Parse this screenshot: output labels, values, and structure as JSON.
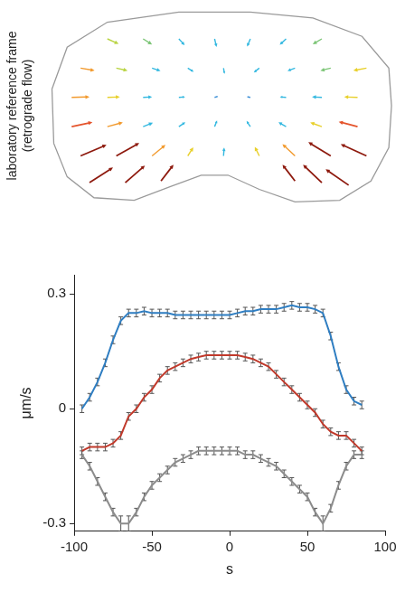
{
  "chart_data": [
    {
      "type": "vector_field",
      "ylabel": "laboratory reference frame (retrograde flow)",
      "tick_labels": false,
      "xlim": [
        0,
        395
      ],
      "ylim": [
        0,
        240
      ],
      "outline": {
        "x": [
          8,
          25,
          70,
          150,
          230,
          300,
          355,
          385,
          388,
          385,
          365,
          330,
          280,
          240,
          205,
          175,
          140,
          100,
          55,
          25,
          10
        ],
        "y": [
          140,
          190,
          220,
          232,
          232,
          225,
          203,
          165,
          120,
          70,
          30,
          7,
          5,
          20,
          37,
          37,
          23,
          7,
          10,
          35,
          75
        ]
      },
      "vectors": {
        "x": [
          70,
          110,
          150,
          190,
          230,
          270,
          310,
          40,
          80,
          120,
          160,
          200,
          240,
          280,
          320,
          360,
          30,
          70,
          110,
          150,
          190,
          230,
          270,
          310,
          350,
          30,
          70,
          110,
          150,
          190,
          230,
          270,
          310,
          350,
          40,
          80,
          120,
          160,
          200,
          240,
          280,
          320,
          360,
          50,
          90,
          130,
          280,
          310,
          340
        ],
        "y": [
          200,
          200,
          200,
          200,
          200,
          200,
          200,
          165,
          165,
          165,
          165,
          165,
          165,
          165,
          165,
          165,
          130,
          130,
          130,
          130,
          130,
          130,
          130,
          130,
          130,
          95,
          95,
          95,
          95,
          95,
          95,
          95,
          95,
          95,
          60,
          60,
          60,
          60,
          60,
          60,
          60,
          60,
          60,
          28,
          28,
          30,
          30,
          28,
          25
        ],
        "u": [
          12.6,
          10,
          6.5,
          2.2,
          -3.6,
          -7.1,
          -10.2,
          15.7,
          12.6,
          9.4,
          6.6,
          1.1,
          -6.1,
          -8.4,
          -11.6,
          -14.7,
          20,
          14,
          10,
          7,
          4,
          -4,
          -7,
          -11,
          -15,
          23.3,
          17.3,
          11,
          7.3,
          2.8,
          -4.2,
          -8.5,
          -13,
          -21.1,
          29,
          25.7,
          15,
          6.2,
          0.7,
          -5,
          -14.1,
          -25.1,
          -28.8,
          26.3,
          22,
          14,
          -14,
          -21,
          -25.7
        ],
        "v": [
          -6,
          -6.8,
          -7.6,
          -9.7,
          -9.3,
          -7.1,
          -6.4,
          -2.9,
          -3,
          -3.3,
          -4.4,
          -6.9,
          -5.2,
          -3.3,
          -3,
          -2.9,
          0.6,
          0.5,
          0.5,
          0.6,
          1.3,
          0.8,
          0.5,
          0.5,
          0.5,
          5.3,
          5,
          4.7,
          5.3,
          7.5,
          6.8,
          5.2,
          5,
          5.9,
          13.2,
          15.4,
          13.2,
          10.3,
          10,
          10.9,
          14.1,
          16.4,
          14,
          18.1,
          20.5,
          19.5,
          19.5,
          21.4,
          19
        ],
        "colors": [
          "#b9d443",
          "#7cc576",
          "#33b8e0",
          "#33b8e0",
          "#33b8e0",
          "#33b8e0",
          "#7cc576",
          "#f29a2e",
          "#b9d443",
          "#33b8e0",
          "#33b8e0",
          "#33b8e0",
          "#33b8e0",
          "#33b8e0",
          "#7cc576",
          "#e8d02c",
          "#f29a2e",
          "#e8d02c",
          "#33b8e0",
          "#33b8e0",
          "#3b8fd6",
          "#3b8fd6",
          "#33b8e0",
          "#33b8e0",
          "#e8d02c",
          "#e4532b",
          "#f29a2e",
          "#33b8e0",
          "#33b8e0",
          "#33b8e0",
          "#33b8e0",
          "#33b8e0",
          "#e8d02c",
          "#e4532b",
          "#8e1a0e",
          "#8e1a0e",
          "#f29a2e",
          "#e8d02c",
          "#33b8e0",
          "#e8d02c",
          "#f29a2e",
          "#8e1a0e",
          "#8e1a0e",
          "#8e1a0e",
          "#8e1a0e",
          "#8e1a0e",
          "#8e1a0e",
          "#8e1a0e",
          "#8e1a0e"
        ]
      }
    },
    {
      "type": "line",
      "xlabel": "s",
      "ylabel": "μm/s",
      "x": [
        -95,
        -90,
        -85,
        -80,
        -75,
        -70,
        -65,
        -60,
        -55,
        -50,
        -45,
        -40,
        -35,
        -30,
        -25,
        -20,
        -15,
        -10,
        -5,
        0,
        5,
        10,
        15,
        20,
        25,
        30,
        35,
        40,
        45,
        50,
        55,
        60,
        65,
        70,
        75,
        80,
        85
      ],
      "xlim": [
        -100,
        100
      ],
      "xticks": [
        -100,
        -50,
        0,
        50,
        100
      ],
      "ylim": [
        -0.32,
        0.35
      ],
      "yticks": [
        -0.3,
        0,
        0.3
      ],
      "grid": false,
      "series": [
        {
          "color": "#2f7ec2",
          "values": [
            0.0,
            0.03,
            0.07,
            0.12,
            0.18,
            0.23,
            0.25,
            0.25,
            0.255,
            0.25,
            0.25,
            0.25,
            0.245,
            0.245,
            0.245,
            0.245,
            0.245,
            0.245,
            0.245,
            0.245,
            0.25,
            0.255,
            0.255,
            0.26,
            0.26,
            0.26,
            0.265,
            0.27,
            0.265,
            0.265,
            0.26,
            0.25,
            0.19,
            0.11,
            0.05,
            0.02,
            0.01
          ],
          "errors": [
            0.01,
            0.01,
            0.01,
            0.01,
            0.01,
            0.01,
            0.01,
            0.01,
            0.01,
            0.01,
            0.01,
            0.01,
            0.01,
            0.01,
            0.01,
            0.01,
            0.01,
            0.01,
            0.01,
            0.01,
            0.01,
            0.01,
            0.01,
            0.01,
            0.01,
            0.01,
            0.01,
            0.01,
            0.01,
            0.01,
            0.01,
            0.01,
            0.01,
            0.01,
            0.01,
            0.01,
            0.01
          ]
        },
        {
          "color": "#c0392b",
          "values": [
            -0.11,
            -0.1,
            -0.1,
            -0.1,
            -0.09,
            -0.07,
            -0.02,
            0.0,
            0.03,
            0.05,
            0.08,
            0.1,
            0.11,
            0.12,
            0.13,
            0.135,
            0.14,
            0.14,
            0.14,
            0.14,
            0.14,
            0.135,
            0.13,
            0.12,
            0.11,
            0.09,
            0.07,
            0.05,
            0.03,
            0.01,
            -0.01,
            -0.04,
            -0.06,
            -0.07,
            -0.07,
            -0.09,
            -0.11
          ],
          "errors": [
            0.01,
            0.01,
            0.01,
            0.01,
            0.01,
            0.01,
            0.01,
            0.01,
            0.01,
            0.01,
            0.01,
            0.01,
            0.01,
            0.01,
            0.01,
            0.01,
            0.01,
            0.01,
            0.01,
            0.01,
            0.01,
            0.01,
            0.01,
            0.01,
            0.01,
            0.01,
            0.01,
            0.01,
            0.01,
            0.01,
            0.01,
            0.01,
            0.01,
            0.01,
            0.01,
            0.01,
            0.01
          ]
        },
        {
          "color": "#8c8c8c",
          "values": [
            -0.12,
            -0.15,
            -0.19,
            -0.23,
            -0.27,
            -0.3,
            -0.3,
            -0.27,
            -0.23,
            -0.2,
            -0.18,
            -0.16,
            -0.14,
            -0.13,
            -0.12,
            -0.11,
            -0.11,
            -0.11,
            -0.11,
            -0.11,
            -0.11,
            -0.12,
            -0.12,
            -0.13,
            -0.14,
            -0.15,
            -0.17,
            -0.19,
            -0.21,
            -0.23,
            -0.27,
            -0.3,
            -0.26,
            -0.2,
            -0.15,
            -0.12,
            -0.12
          ],
          "errors": [
            0.01,
            0.01,
            0.01,
            0.01,
            0.01,
            0.02,
            0.02,
            0.01,
            0.01,
            0.01,
            0.01,
            0.01,
            0.01,
            0.01,
            0.01,
            0.01,
            0.01,
            0.01,
            0.01,
            0.01,
            0.01,
            0.01,
            0.01,
            0.01,
            0.01,
            0.01,
            0.01,
            0.01,
            0.01,
            0.01,
            0.01,
            0.02,
            0.01,
            0.01,
            0.01,
            0.01,
            0.01
          ]
        }
      ]
    }
  ]
}
